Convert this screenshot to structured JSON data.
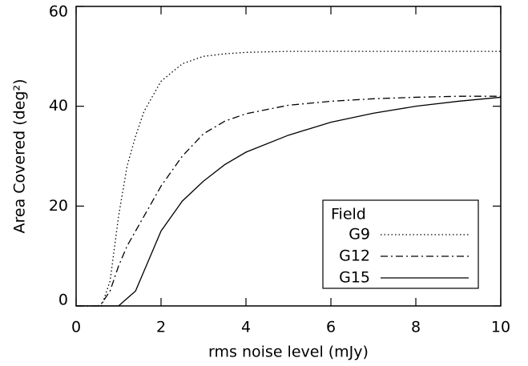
{
  "chart_data": {
    "type": "line",
    "x_label": "rms noise level (mJy)",
    "y_label": "Area Covered (deg²)",
    "x": [
      0,
      0.5,
      0.6,
      0.8,
      1,
      1.2,
      1.4,
      1.6,
      2,
      2.5,
      3,
      3.5,
      4,
      5,
      6,
      7,
      8,
      9,
      10
    ],
    "series": [
      {
        "name": "G9",
        "color": "#000000",
        "linestyle": "dotted",
        "values": [
          0,
          0,
          0,
          5,
          18,
          28,
          34,
          39,
          45,
          48.5,
          50,
          50.5,
          50.8,
          51,
          51,
          51,
          51,
          51,
          51
        ]
      },
      {
        "name": "G12",
        "color": "#000000",
        "linestyle": "dashdot",
        "values": [
          0,
          0,
          0.5,
          3,
          8,
          12,
          15,
          18,
          24,
          30,
          34.5,
          37,
          38.5,
          40.2,
          41,
          41.5,
          41.8,
          42,
          42
        ]
      },
      {
        "name": "G15",
        "color": "#000000",
        "linestyle": "solid",
        "values": [
          0,
          0,
          0,
          0,
          0,
          1.5,
          3,
          7,
          15,
          21,
          25,
          28.3,
          30.8,
          34.2,
          36.8,
          38.6,
          40,
          41,
          41.8
        ]
      }
    ],
    "legend_title": "Field",
    "legend": "lower right",
    "xlim": [
      0,
      10
    ],
    "xticks": [
      0,
      2,
      4,
      6,
      8,
      10
    ],
    "ylim": [
      0,
      60
    ],
    "yticks": [
      0,
      20,
      40,
      60
    ]
  }
}
